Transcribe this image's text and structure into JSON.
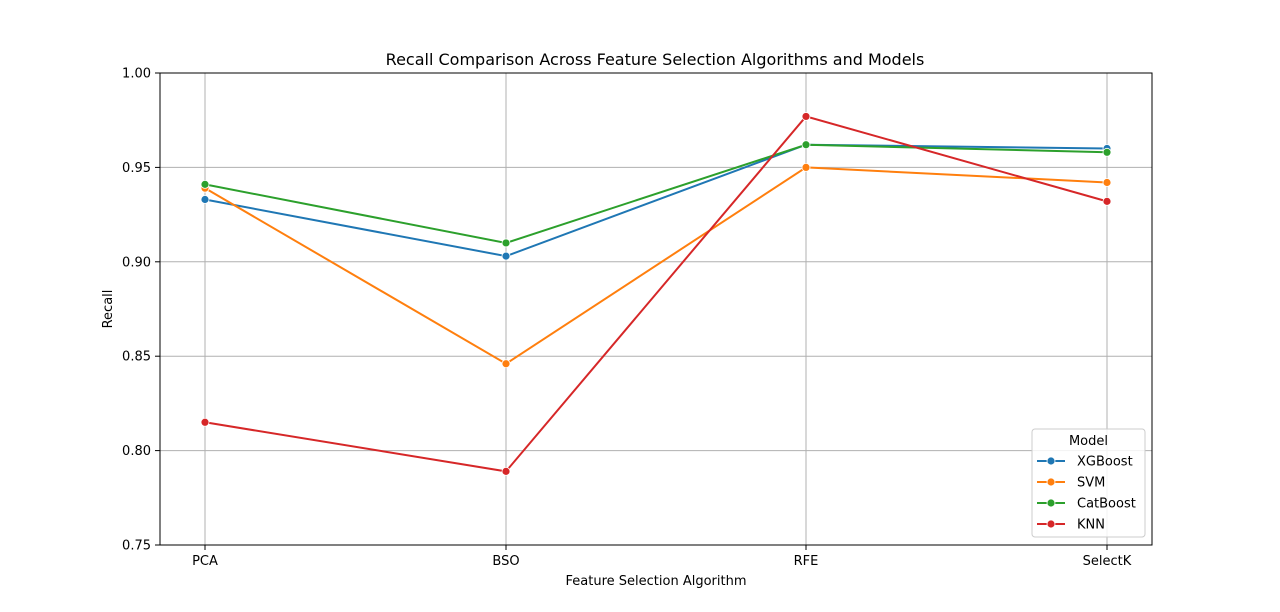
{
  "chart_data": {
    "type": "line",
    "title": "Recall Comparison Across Feature Selection Algorithms and Models",
    "xlabel": "Feature Selection Algorithm",
    "ylabel": "Recall",
    "categories": [
      "PCA",
      "BSO",
      "RFE",
      "SelectK"
    ],
    "ylim": [
      0.75,
      1.0
    ],
    "yticks": [
      "0.75",
      "0.80",
      "0.85",
      "0.90",
      "0.95",
      "1.00"
    ],
    "grid": true,
    "legend": {
      "title": "Model",
      "placement": "lower-right"
    },
    "series": [
      {
        "name": "XGBoost",
        "color": "#1f77b4",
        "values": [
          0.933,
          0.903,
          0.962,
          0.96
        ]
      },
      {
        "name": "SVM",
        "color": "#ff7f0e",
        "values": [
          0.939,
          0.846,
          0.95,
          0.942
        ]
      },
      {
        "name": "CatBoost",
        "color": "#2ca02c",
        "values": [
          0.941,
          0.91,
          0.962,
          0.958
        ]
      },
      {
        "name": "KNN",
        "color": "#d62728",
        "values": [
          0.815,
          0.789,
          0.977,
          0.932
        ]
      }
    ]
  }
}
